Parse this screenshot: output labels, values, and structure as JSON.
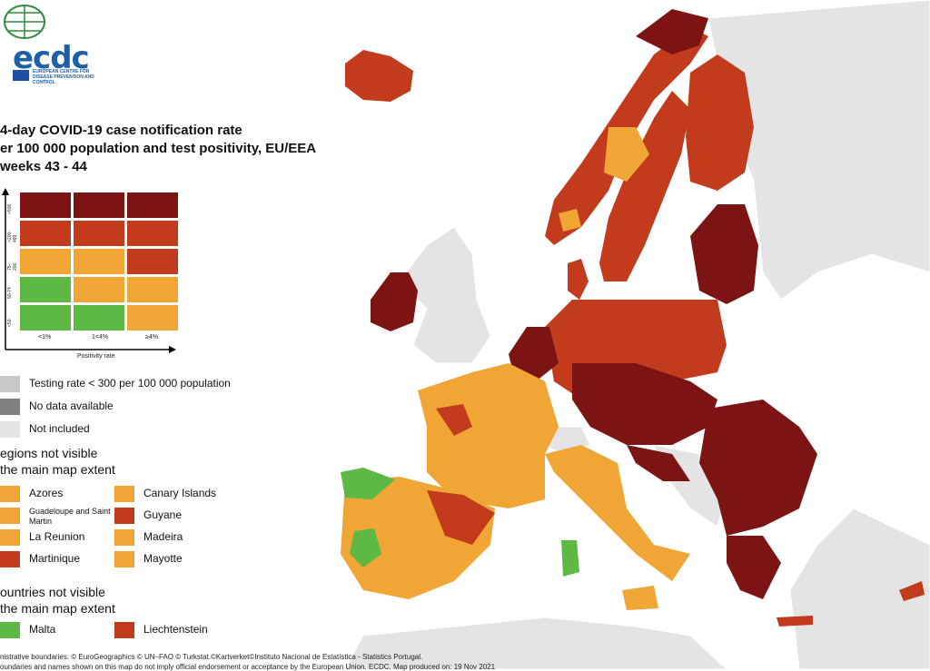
{
  "logo": {
    "word": "ecdc",
    "subtitle": "EUROPEAN CENTRE FOR DISEASE PREVENTION AND CONTROL"
  },
  "title": [
    "4-day COVID-19 case notification rate",
    "er 100 000 population and test positivity, EU/EEA",
    "weeks 43 - 44"
  ],
  "colors": {
    "dark_red": "#7d1414",
    "red": "#c23b1d",
    "orange": "#f0a534",
    "green": "#5db844",
    "grey": "#c8c8c8",
    "dark_grey": "#808080",
    "light_grey": "#e4e4e4",
    "sea": "#ffffff"
  },
  "matrix": {
    "y_labels": [
      ">500",
      ">200-499",
      "75-200",
      "50-74",
      "<50"
    ],
    "x_labels": [
      "<1%",
      "1<4%",
      "≥4%"
    ],
    "x_title": "Positivity rate",
    "rows": [
      [
        "dark_red",
        "dark_red",
        "dark_red"
      ],
      [
        "red",
        "red",
        "red"
      ],
      [
        "orange",
        "orange",
        "red"
      ],
      [
        "green",
        "orange",
        "orange"
      ],
      [
        "green",
        "green",
        "orange"
      ]
    ]
  },
  "legend": [
    {
      "color": "grey",
      "label": "Testing rate < 300 per 100 000 population"
    },
    {
      "color": "dark_grey",
      "label": "No data available"
    },
    {
      "color": "light_grey",
      "label": "Not included"
    }
  ],
  "regions_title": [
    "egions not visible",
    "the main map extent"
  ],
  "regions": [
    {
      "color": "orange",
      "label": "Azores"
    },
    {
      "color": "orange",
      "label": "Canary Islands"
    },
    {
      "color": "orange",
      "label": "Guadeloupe and Saint Martin"
    },
    {
      "color": "red",
      "label": "Guyane"
    },
    {
      "color": "orange",
      "label": "La Reunion"
    },
    {
      "color": "orange",
      "label": "Madeira"
    },
    {
      "color": "red",
      "label": "Martinique"
    },
    {
      "color": "orange",
      "label": "Mayotte"
    }
  ],
  "countries_title": [
    "ountries not visible",
    "the main map extent"
  ],
  "countries": [
    {
      "color": "green",
      "label": "Malta"
    },
    {
      "color": "red",
      "label": "Liechtenstein"
    }
  ],
  "footer": "nistrative boundaries: © EuroGeographics © UN–FAO © Turkstat.©Kartverket©Instituto Nacional de Estatística - Statistics Portugal.",
  "footer2": "oundaries and names shown on this map do not imply official endorsement or acceptance by the European Union. ECDC. Map produced on: 19 Nov 2021"
}
